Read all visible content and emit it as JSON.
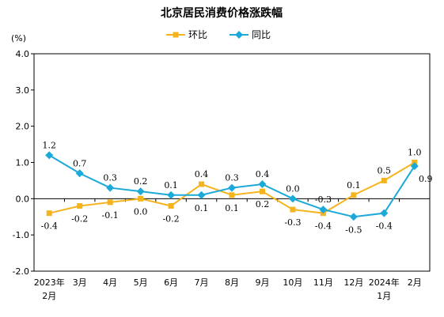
{
  "chart_data": {
    "type": "line",
    "title": "北京居民消费价格涨跌幅",
    "yunit": "(%)",
    "ylim": [
      -2.0,
      4.0
    ],
    "yticks": [
      "4.0",
      "3.0",
      "2.0",
      "1.0",
      "0.0",
      "-1.0",
      "-2.0"
    ],
    "categories": [
      [
        "2023年",
        "2月"
      ],
      [
        "3月"
      ],
      [
        "4月"
      ],
      [
        "5月"
      ],
      [
        "6月"
      ],
      [
        "7月"
      ],
      [
        "8月"
      ],
      [
        "9月"
      ],
      [
        "10月"
      ],
      [
        "11月"
      ],
      [
        "12月"
      ],
      [
        "2024年",
        "1月"
      ],
      [
        "2月"
      ]
    ],
    "grid": false,
    "legend_position": "top-center",
    "series": [
      {
        "name": "环比",
        "color": "#F5B41E",
        "marker": "square",
        "values": [
          -0.4,
          -0.2,
          -0.1,
          0.0,
          -0.2,
          0.4,
          0.1,
          0.2,
          -0.3,
          -0.4,
          0.1,
          0.5,
          1.0
        ],
        "labels": [
          "-0.4",
          "-0.2",
          "-0.1",
          "0.0",
          "-0.2",
          "0.4",
          "0.1",
          "0.2",
          "-0.3",
          "-0.4",
          "0.1",
          "0.5",
          "1.0"
        ]
      },
      {
        "name": "同比",
        "color": "#1BA9D9",
        "marker": "diamond",
        "values": [
          1.2,
          0.7,
          0.3,
          0.2,
          0.1,
          0.1,
          0.3,
          0.4,
          0.0,
          -0.3,
          -0.5,
          -0.4,
          0.9
        ],
        "labels": [
          "1.2",
          "0.7",
          "0.3",
          "0.2",
          "0.1",
          "0.1",
          "0.3",
          "0.4",
          "0.0",
          "-0.3",
          "-0.5",
          "-0.4",
          "0.9"
        ]
      }
    ]
  }
}
